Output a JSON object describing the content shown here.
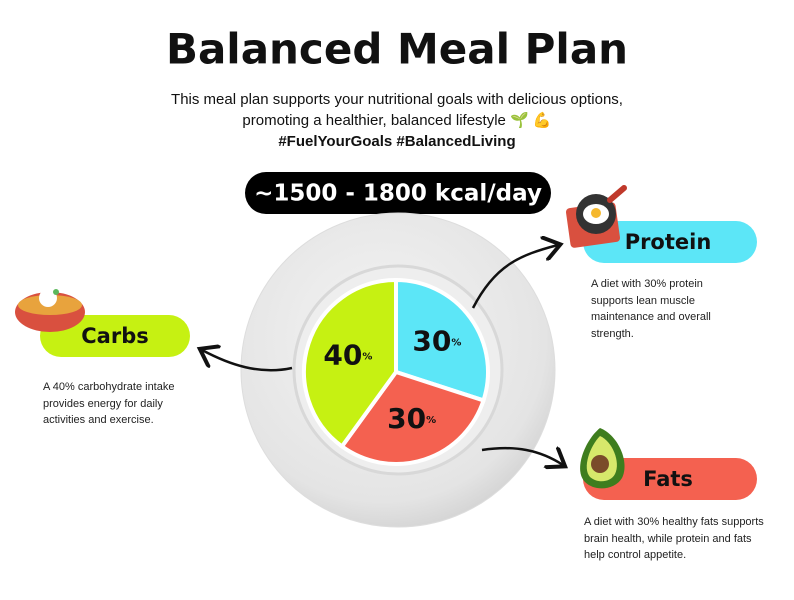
{
  "header": {
    "title": "Balanced Meal Plan",
    "subtitle": [
      "This meal plan supports your nutritional goals with delicious options,",
      "promoting a healthier, balanced lifestyle 🌱 💪"
    ],
    "hashtags": "#FuelYourGoals #BalancedLiving"
  },
  "badge": "~1500 - 1800 kcal/day",
  "chart_data": {
    "type": "pie",
    "categories": [
      "Protein",
      "Fats",
      "Carbs"
    ],
    "values": [
      30,
      30,
      40
    ],
    "value_labels": [
      "30%",
      "30%",
      "40%"
    ],
    "colors": [
      "#5ce6f7",
      "#f46150",
      "#c6f112"
    ]
  },
  "descriptions": [
    "A diet with 30% protein supports lean muscle maintenance and overall strength.",
    "A diet with 30% healthy fats supports brain health, while protein and fats help control appetite.",
    "A 40% carbohydrate intake provides energy for daily activities and exercise."
  ]
}
